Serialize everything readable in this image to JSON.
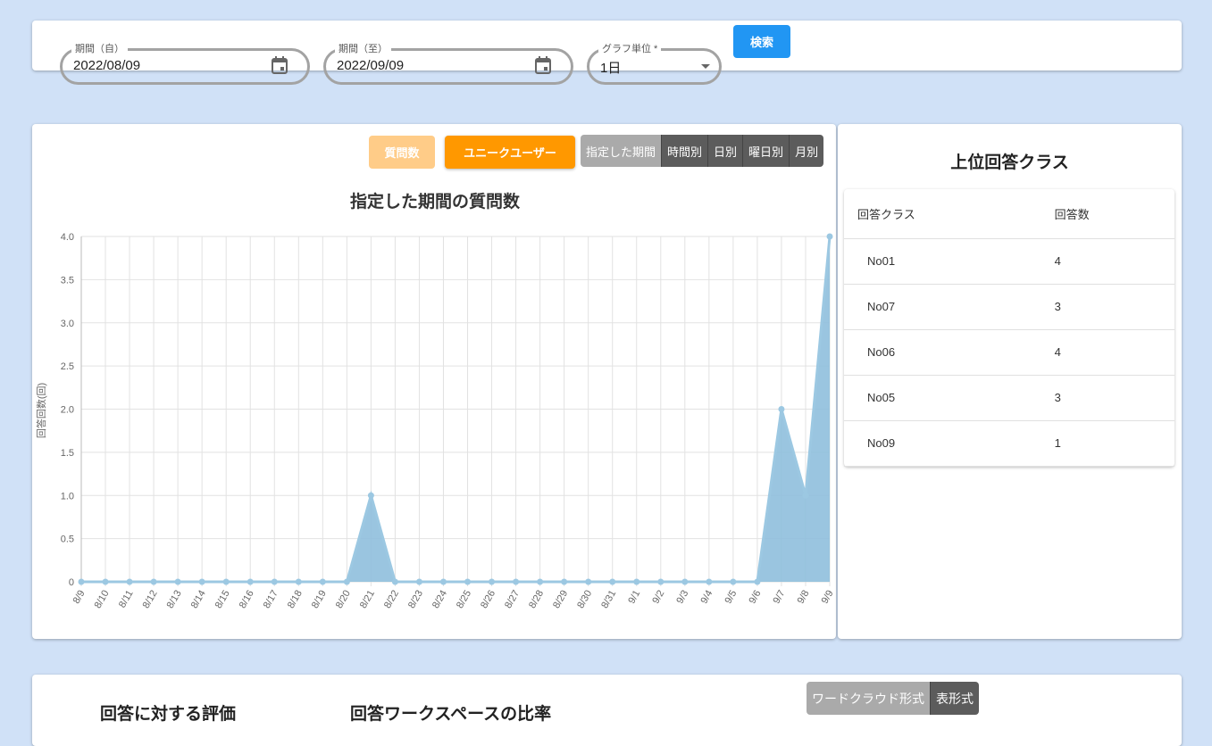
{
  "filters": {
    "from_label": "期間（自）",
    "from_value": "2022/08/09",
    "to_label": "期間（至）",
    "to_value": "2022/09/09",
    "unit_label": "グラフ単位 *",
    "unit_value": "1日",
    "search": "検索"
  },
  "chart_panel": {
    "btn_questions": "質問数",
    "btn_unique": "ユニークユーザー",
    "segments": [
      "指定した期間",
      "時間別",
      "日別",
      "曜日別",
      "月別"
    ]
  },
  "chart_data": {
    "type": "area",
    "title": "指定した期間の質問数",
    "ylabel": "回答回数(回)",
    "ylim": [
      0,
      4
    ],
    "yticks": [
      "0",
      "0.5",
      "1.0",
      "1.5",
      "2.0",
      "2.5",
      "3.0",
      "3.5",
      "4.0"
    ],
    "grid": true,
    "color": "#8fbfdd",
    "x": [
      "8/9",
      "8/10",
      "8/11",
      "8/12",
      "8/13",
      "8/14",
      "8/15",
      "8/16",
      "8/17",
      "8/18",
      "8/19",
      "8/20",
      "8/21",
      "8/22",
      "8/23",
      "8/24",
      "8/25",
      "8/26",
      "8/27",
      "8/28",
      "8/29",
      "8/30",
      "8/31",
      "9/1",
      "9/2",
      "9/3",
      "9/4",
      "9/5",
      "9/6",
      "9/7",
      "9/8",
      "9/9"
    ],
    "values": [
      0,
      0,
      0,
      0,
      0,
      0,
      0,
      0,
      0,
      0,
      0,
      0,
      1,
      0,
      0,
      0,
      0,
      0,
      0,
      0,
      0,
      0,
      0,
      0,
      0,
      0,
      0,
      0,
      0,
      2,
      1,
      4
    ]
  },
  "top_classes": {
    "title": "上位回答クラス",
    "headers": [
      "回答クラス",
      "回答数"
    ],
    "rows": [
      [
        "No01",
        "4"
      ],
      [
        "No07",
        "3"
      ],
      [
        "No06",
        "4"
      ],
      [
        "No05",
        "3"
      ],
      [
        "No09",
        "1"
      ]
    ]
  },
  "bottom": {
    "eval_title": "回答に対する評価",
    "ratio_title": "回答ワークスペースの比率",
    "segments": [
      "ワードクラウド形式",
      "表形式"
    ]
  }
}
